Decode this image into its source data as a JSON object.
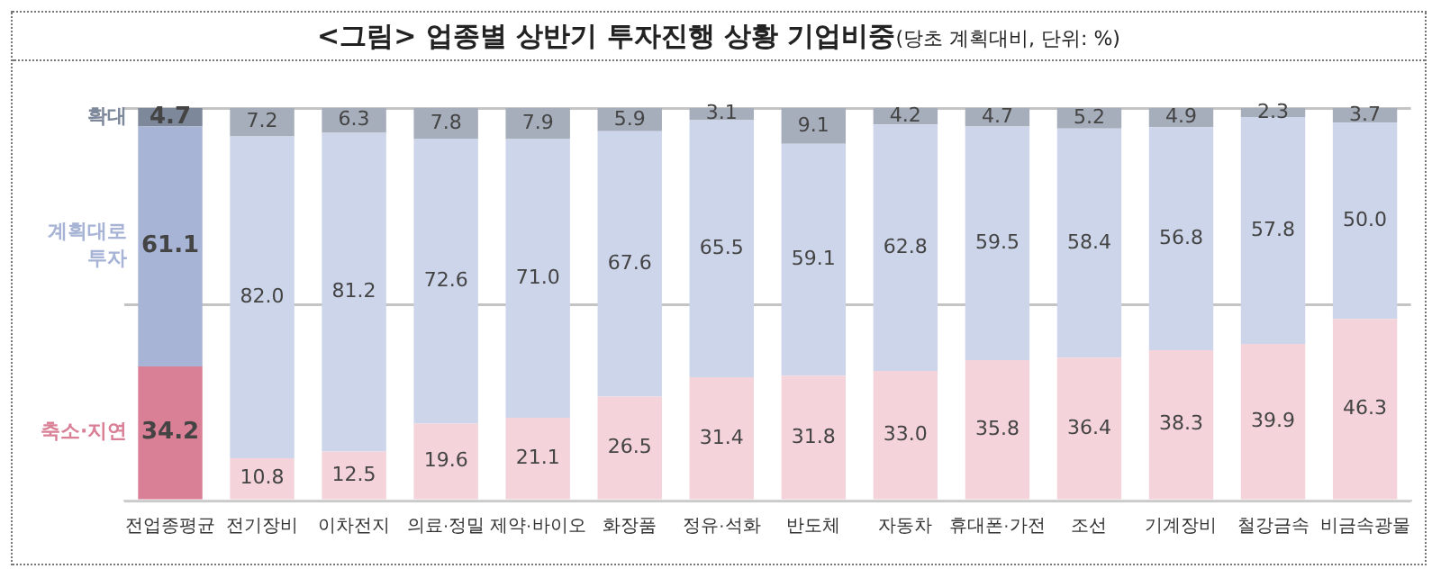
{
  "chart_data": {
    "type": "bar",
    "title": "<그림> 업종별 상반기 투자진행 상황 기업비중",
    "subtitle": "(당초 계획대비, 단위: %)",
    "categories": [
      "전업종평균",
      "전기장비",
      "이차전지",
      "의료·정밀",
      "제약·바이오",
      "화장품",
      "정유·석화",
      "반도체",
      "자동차",
      "휴대폰·가전",
      "조선",
      "기계장비",
      "철강금속",
      "비금속광물"
    ],
    "stacked": true,
    "legend": false,
    "grid": "y",
    "tick_labels": "x",
    "ylim": [
      0,
      100
    ],
    "yticks": [
      {
        "value": 0,
        "label": null
      },
      {
        "value": 50,
        "label": null
      },
      {
        "value": 100,
        "label": null
      }
    ],
    "series": [
      {
        "name": "축소·지연",
        "value_labels": [
          "34.2",
          "10.8",
          "12.5",
          "19.6",
          "21.1",
          "26.5",
          "31.4",
          "31.8",
          "33.0",
          "35.8",
          "36.4",
          "38.3",
          "39.9",
          "46.3"
        ],
        "colors": [
          "#d97f96",
          "#f4d3da",
          "#f4d3da",
          "#f4d3da",
          "#f4d3da",
          "#f4d3da",
          "#f4d3da",
          "#f4d3da",
          "#f4d3da",
          "#f4d3da",
          "#f4d3da",
          "#f4d3da",
          "#f4d3da",
          "#f4d3da"
        ],
        "values": [
          34.2,
          10.8,
          12.5,
          19.6,
          21.1,
          26.5,
          31.4,
          31.8,
          33.0,
          35.8,
          36.4,
          38.3,
          39.9,
          46.3
        ]
      },
      {
        "name": "계획대로 투자",
        "value_labels": [
          "61.1",
          "82.0",
          "81.2",
          "72.6",
          "71.0",
          "67.6",
          "65.5",
          "59.1",
          "62.8",
          "59.5",
          "58.4",
          "56.8",
          "57.8",
          "50.0"
        ],
        "colors": [
          "#a8b4d6",
          "#ccd5ea",
          "#ccd5ea",
          "#ccd5ea",
          "#ccd5ea",
          "#ccd5ea",
          "#ccd5ea",
          "#ccd5ea",
          "#ccd5ea",
          "#ccd5ea",
          "#ccd5ea",
          "#ccd5ea",
          "#ccd5ea",
          "#ccd5ea"
        ],
        "values": [
          61.1,
          82.0,
          81.2,
          72.6,
          71.0,
          67.6,
          65.5,
          59.1,
          62.8,
          59.5,
          58.4,
          56.8,
          57.8,
          50.0
        ]
      },
      {
        "name": "확대",
        "value_labels": [
          "4.7",
          "7.2",
          "6.3",
          "7.8",
          "7.9",
          "5.9",
          "3.1",
          "9.1",
          "4.2",
          "4.7",
          "5.2",
          "4.9",
          "2.3",
          "3.7"
        ],
        "colors": [
          "#7e889b",
          "#a6adbb",
          "#a6adbb",
          "#a6adbb",
          "#a6adbb",
          "#a6adbb",
          "#a6adbb",
          "#a6adbb",
          "#a6adbb",
          "#a6adbb",
          "#a6adbb",
          "#a6adbb",
          "#a6adbb",
          "#a6adbb"
        ],
        "values": [
          4.7,
          7.2,
          6.3,
          7.8,
          7.9,
          5.9,
          3.1,
          9.1,
          4.2,
          4.7,
          5.2,
          4.9,
          2.3,
          3.7
        ]
      }
    ]
  }
}
